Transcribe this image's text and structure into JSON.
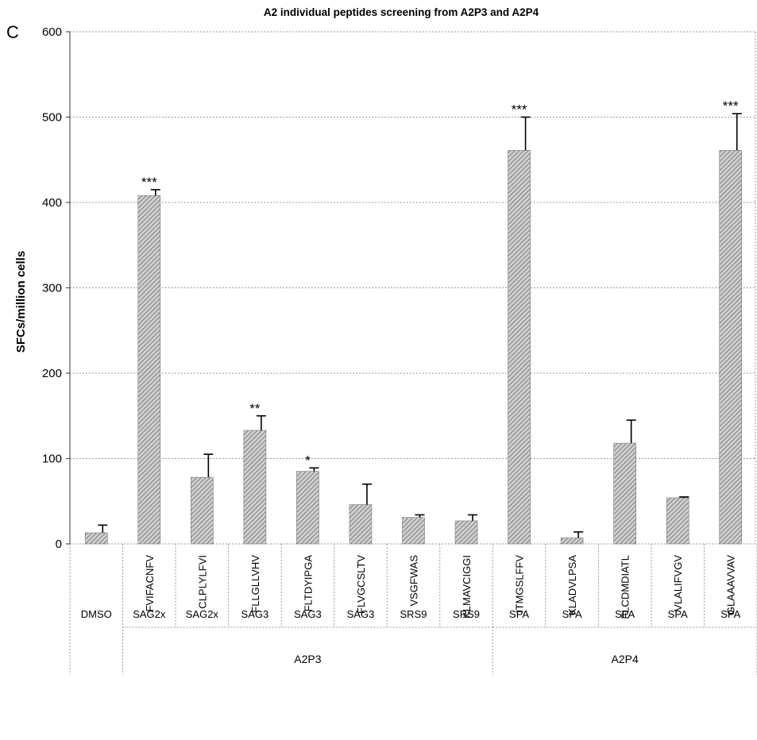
{
  "panel_letter": "C",
  "chart_data": {
    "type": "bar",
    "title": "A2 individual peptides screening from A2P3 and A2P4",
    "ylabel": "SFCs/million cells",
    "xlabel": "",
    "ylim": [
      0,
      600
    ],
    "yticks": [
      0,
      100,
      200,
      300,
      400,
      500,
      600
    ],
    "grid": true,
    "categories": [
      "",
      "FVIFACNFV",
      "CLPLYLFVI",
      "FLLGLLVHV",
      "FLTDYIPGA",
      "FLVGCSLTV",
      "VSGFWAS",
      "KLMAVCIGGI",
      "ITMGSLFFV",
      "KLADVLPSA",
      "FLCDMDIATL",
      "VLALIFVGV",
      "GLAAAVVAV"
    ],
    "sources": [
      "DMSO",
      "SAG2x",
      "SAG2x",
      "SAG3",
      "SAG3",
      "SAG3",
      "SRS9",
      "SRS9",
      "SPA",
      "SPA",
      "SPA",
      "SPA",
      "SPA"
    ],
    "values": [
      13,
      408,
      78,
      133,
      85,
      46,
      31,
      27,
      461,
      7,
      118,
      54,
      461
    ],
    "errors": [
      9,
      7,
      27,
      17,
      4,
      24,
      3,
      7,
      39,
      7,
      27,
      1,
      43
    ],
    "significance": [
      "",
      "***",
      "",
      "**",
      "*",
      "",
      "",
      "",
      "***",
      "",
      "",
      "",
      "***"
    ],
    "groups": [
      {
        "label": "A2P3",
        "start": 1,
        "end": 7
      },
      {
        "label": "A2P4",
        "start": 8,
        "end": 12
      }
    ],
    "colors": {
      "bar_fill": "#c8c8c8",
      "bar_hatch": "#6a6a6a",
      "grid": "#9a9a9a"
    }
  }
}
